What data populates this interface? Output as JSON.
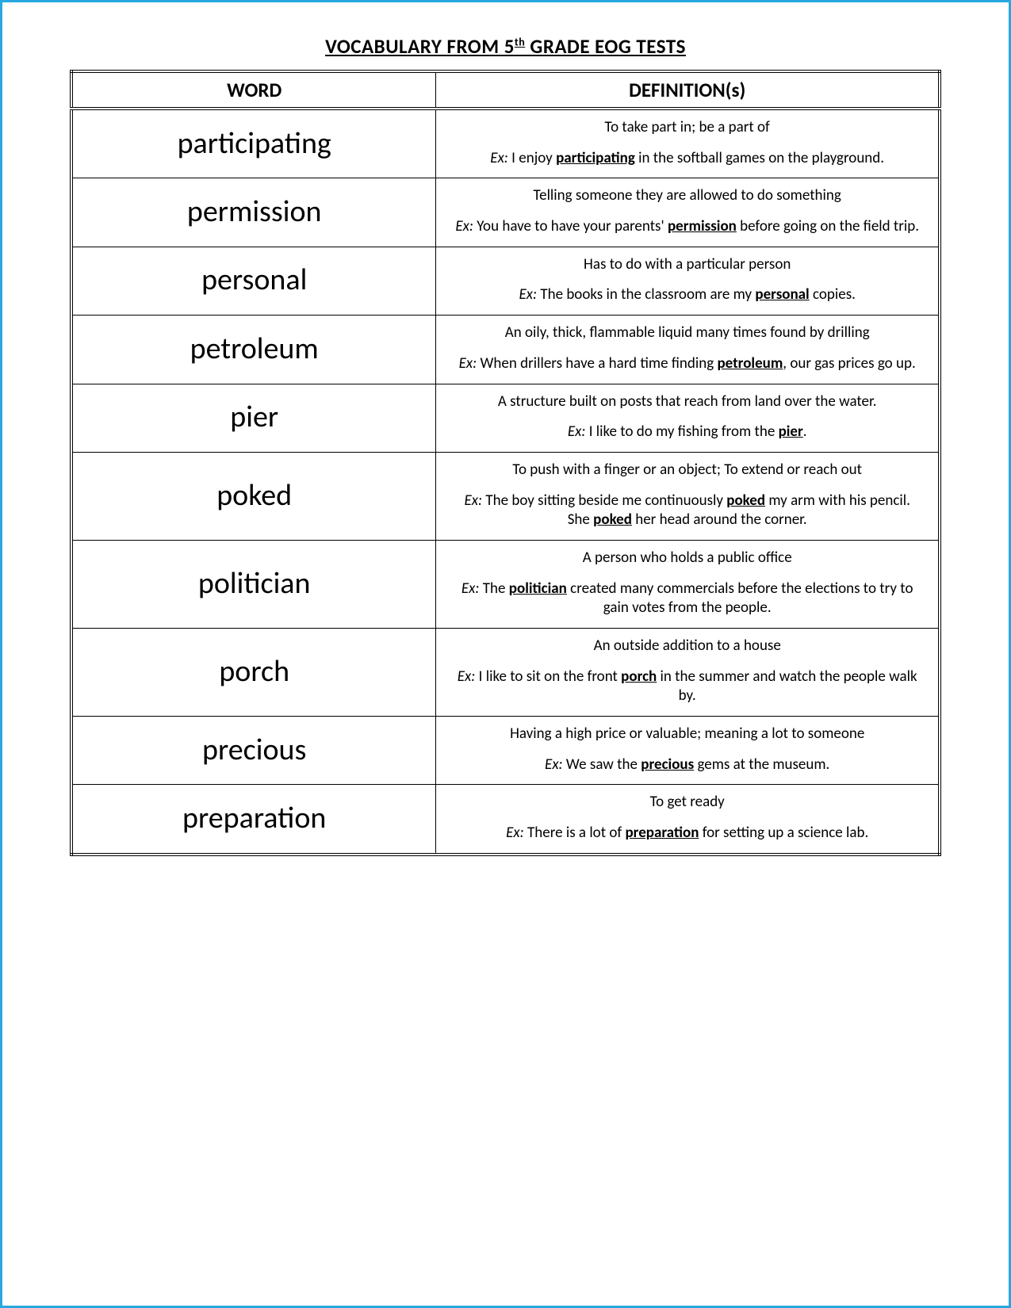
{
  "title_prefix": "VOCABULARY FROM 5",
  "title_sup": "th",
  "title_suffix": " GRADE EOG TESTS",
  "headers": {
    "word": "WORD",
    "definition": "DEFINITION(s)"
  },
  "ex_label": "Ex:",
  "rows": [
    {
      "word": "participating",
      "definition": "To take part in; be a part of",
      "examples": [
        {
          "pre": " I enjoy ",
          "kw": "participating",
          "post": " in the softball games on the playground."
        }
      ]
    },
    {
      "word": "permission",
      "definition": "Telling someone they are allowed to do something",
      "examples": [
        {
          "pre": " You have to have your parents' ",
          "kw": "permission",
          "post": " before going on the field trip."
        }
      ]
    },
    {
      "word": "personal",
      "definition": "Has to do with a particular person",
      "examples": [
        {
          "pre": " The books in the classroom are my ",
          "kw": "personal",
          "post": " copies."
        }
      ]
    },
    {
      "word": "petroleum",
      "definition": "An oily, thick, flammable liquid many times found by drilling",
      "examples": [
        {
          "pre": " When drillers have a hard time finding ",
          "kw": "petroleum",
          "post": ", our gas prices go up."
        }
      ]
    },
    {
      "word": "pier",
      "definition": "A structure built on posts that reach from land over the water.",
      "examples": [
        {
          "pre": " I like to do my fishing from the ",
          "kw": "pier",
          "post": "."
        }
      ]
    },
    {
      "word": "poked",
      "definition": "To push with a finger or an object; To extend or reach out",
      "examples": [
        {
          "pre": " The boy sitting beside me continuously ",
          "kw": "poked",
          "post": " my arm with his pencil."
        },
        {
          "no_label": true,
          "pre": "She ",
          "kw": "poked",
          "post": " her head around the corner."
        }
      ]
    },
    {
      "word": "politician",
      "definition": "A person who holds a public office",
      "examples": [
        {
          "pre": " The ",
          "kw": "politician",
          "post": " created many commercials before the elections to try to gain votes from the people."
        }
      ]
    },
    {
      "word": "porch",
      "definition": "An outside addition to a house",
      "examples": [
        {
          "pre": " I like to sit on the front ",
          "kw": "porch",
          "post": " in the summer and watch the people walk by."
        }
      ]
    },
    {
      "word": "precious",
      "definition": "Having a high price or valuable; meaning a lot to someone",
      "examples": [
        {
          "pre": " We saw the ",
          "kw": "precious",
          "post": " gems at the museum."
        }
      ]
    },
    {
      "word": "preparation",
      "definition": "To get ready",
      "examples": [
        {
          "pre": " There is a lot of ",
          "kw": "preparation",
          "post": " for setting up a science lab."
        }
      ]
    }
  ]
}
